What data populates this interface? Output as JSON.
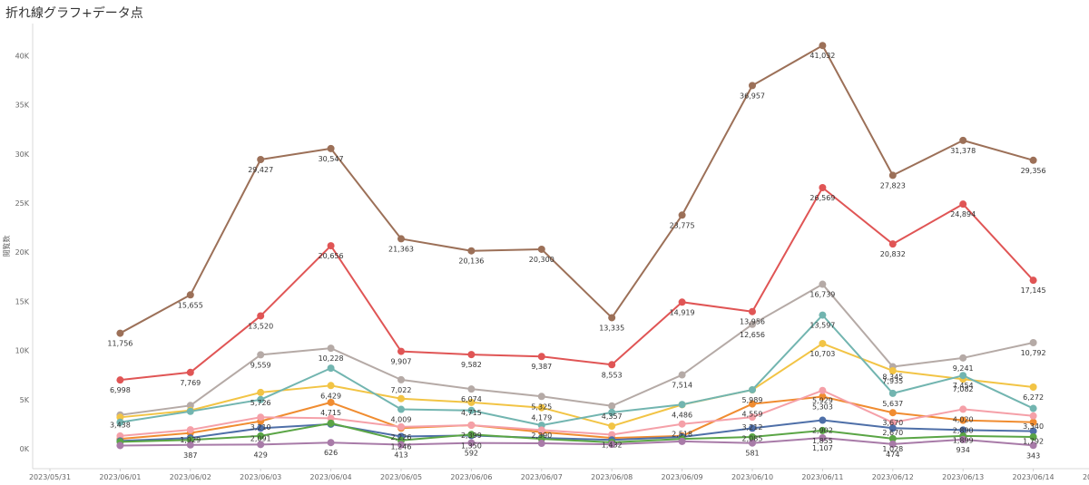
{
  "title": "折れ線グラフ+データ点",
  "chart_data": {
    "type": "line",
    "title": "折れ線グラフ+データ点",
    "ylabel": "閲覧数",
    "xlabel": "",
    "ylim": [
      0,
      42000
    ],
    "y_ticks": [
      0,
      5000,
      10000,
      15000,
      20000,
      25000,
      30000,
      35000,
      40000
    ],
    "y_tick_labels": [
      "0K",
      "5K",
      "10K",
      "15K",
      "20K",
      "25K",
      "30K",
      "35K",
      "40K"
    ],
    "x_tick_labels": [
      "2023/05/31",
      "2023/06/01",
      "2023/06/02",
      "2023/06/03",
      "2023/06/04",
      "2023/06/05",
      "2023/06/06",
      "2023/06/07",
      "2023/06/08",
      "2023/06/09",
      "2023/06/10",
      "2023/06/11",
      "2023/06/12",
      "2023/06/13",
      "2023/06/14",
      "2023/06/15"
    ],
    "x": [
      "2023/06/01",
      "2023/06/02",
      "2023/06/03",
      "2023/06/04",
      "2023/06/05",
      "2023/06/06",
      "2023/06/07",
      "2023/06/08",
      "2023/06/09",
      "2023/06/10",
      "2023/06/11",
      "2023/06/12",
      "2023/06/13",
      "2023/06/14"
    ],
    "grid": false,
    "series": [
      {
        "color": "#9c7058",
        "values": [
          11756,
          15655,
          29427,
          30547,
          21363,
          20136,
          20300,
          13335,
          23775,
          36957,
          41032,
          27823,
          31378,
          29356
        ],
        "labeled": [
          true,
          true,
          true,
          true,
          true,
          true,
          true,
          true,
          true,
          true,
          true,
          true,
          true,
          true
        ]
      },
      {
        "color": "#e05555",
        "values": [
          6998,
          7769,
          13520,
          20656,
          9907,
          9582,
          9387,
          8553,
          14919,
          13956,
          26569,
          20832,
          24894,
          17145
        ],
        "labeled": [
          true,
          true,
          true,
          true,
          true,
          true,
          true,
          true,
          true,
          true,
          true,
          true,
          true,
          true
        ]
      },
      {
        "color": "#b5aaa6",
        "values": [
          3438,
          4400,
          9559,
          10228,
          7022,
          6074,
          5325,
          4357,
          7514,
          12656,
          16739,
          8345,
          9241,
          10792
        ],
        "labeled": [
          true,
          false,
          true,
          true,
          true,
          true,
          true,
          true,
          true,
          true,
          true,
          true,
          true,
          true
        ]
      },
      {
        "color": "#f2c445",
        "values": [
          3200,
          3900,
          5726,
          6429,
          5100,
          4715,
          4179,
          2300,
          4486,
          5989,
          10703,
          7935,
          7082,
          6272
        ],
        "labeled": [
          false,
          false,
          true,
          true,
          false,
          true,
          true,
          false,
          true,
          true,
          true,
          true,
          true,
          true
        ]
      },
      {
        "color": "#72b5b0",
        "values": [
          2700,
          3800,
          5000,
          8200,
          4009,
          3900,
          2390,
          3700,
          4500,
          6000,
          13597,
          5637,
          7454,
          4100
        ],
        "labeled": [
          false,
          false,
          false,
          false,
          true,
          false,
          true,
          false,
          false,
          false,
          true,
          true,
          true,
          false
        ]
      },
      {
        "color": "#f08c30",
        "values": [
          1000,
          1600,
          2800,
          4715,
          2100,
          2399,
          1700,
          1100,
          1300,
          4559,
          5303,
          3670,
          2890,
          2700
        ],
        "labeled": [
          false,
          false,
          false,
          true,
          false,
          true,
          false,
          false,
          false,
          true,
          true,
          true,
          true,
          false
        ]
      },
      {
        "color": "#f5a0a8",
        "values": [
          1300,
          1929,
          3210,
          3100,
          2226,
          2400,
          1900,
          1432,
          2518,
          3212,
          5929,
          2670,
          4020,
          3340
        ],
        "labeled": [
          false,
          true,
          true,
          false,
          true,
          false,
          false,
          true,
          true,
          true,
          true,
          true,
          true,
          true
        ]
      },
      {
        "color": "#4e6fa8",
        "values": [
          800,
          1100,
          2091,
          2500,
          1246,
          1350,
          1100,
          900,
          1200,
          2085,
          2902,
          2100,
          1899,
          1792
        ],
        "labeled": [
          false,
          false,
          true,
          false,
          true,
          true,
          false,
          false,
          false,
          true,
          true,
          false,
          true,
          true
        ]
      },
      {
        "color": "#5aa545",
        "values": [
          700,
          900,
          1300,
          2600,
          850,
          1450,
          1000,
          650,
          1000,
          1200,
          1855,
          1028,
          1300,
          1200
        ],
        "labeled": [
          false,
          false,
          false,
          false,
          false,
          false,
          false,
          false,
          false,
          false,
          true,
          true,
          false,
          false
        ]
      },
      {
        "color": "#a87ba8",
        "values": [
          327,
          387,
          429,
          626,
          413,
          592,
          550,
          450,
          750,
          581,
          1107,
          474,
          934,
          343
        ],
        "labeled": [
          false,
          true,
          true,
          true,
          true,
          true,
          false,
          false,
          false,
          true,
          true,
          true,
          true,
          true
        ]
      }
    ]
  }
}
